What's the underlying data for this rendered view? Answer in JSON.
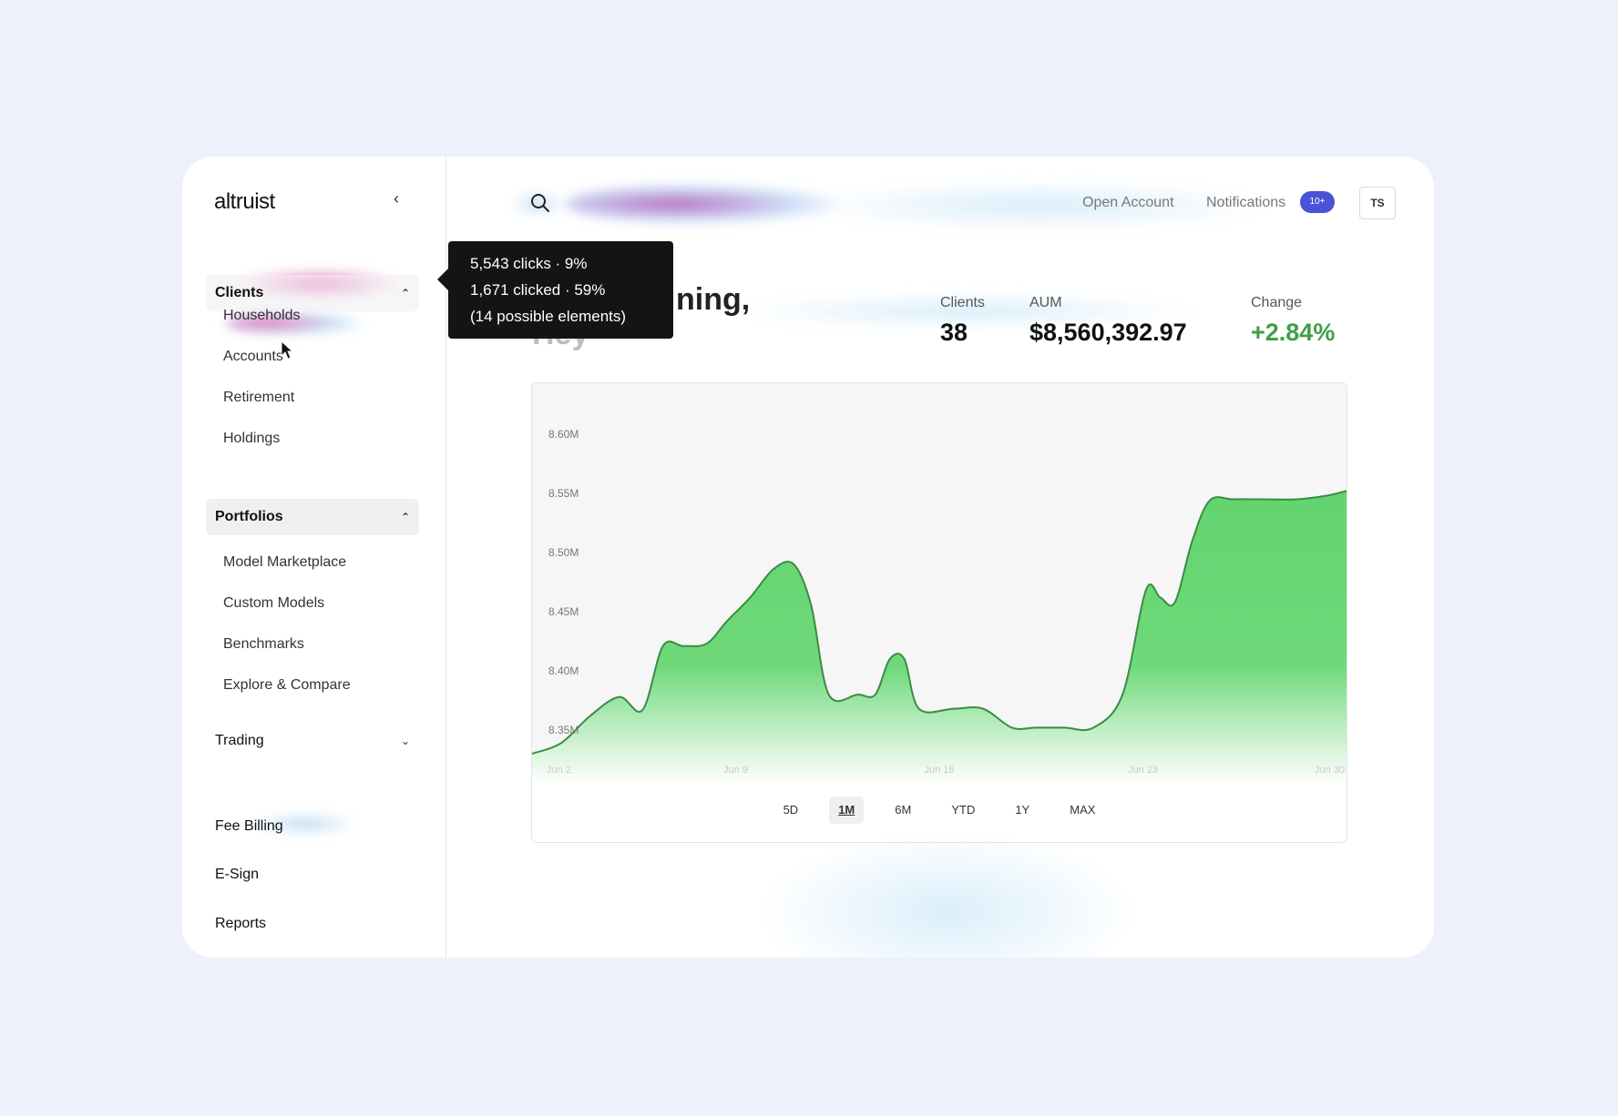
{
  "brand": {
    "logo_text": "altruist"
  },
  "sidebar": {
    "collapse_icon": "chevron-left-icon",
    "groups": [
      {
        "label": "Clients",
        "expanded": true,
        "items": [
          {
            "label": "Households"
          },
          {
            "label": "Accounts"
          },
          {
            "label": "Retirement"
          },
          {
            "label": "Holdings"
          }
        ]
      },
      {
        "label": "Portfolios",
        "expanded": true,
        "items": [
          {
            "label": "Model Marketplace"
          },
          {
            "label": "Custom Models"
          },
          {
            "label": "Benchmarks"
          },
          {
            "label": "Explore & Compare"
          }
        ]
      },
      {
        "label": "Trading",
        "expanded": false,
        "items": []
      }
    ],
    "bottom_items": [
      {
        "label": "Fee Billing"
      },
      {
        "label": "E-Sign"
      },
      {
        "label": "Reports"
      }
    ]
  },
  "tooltip": {
    "line1": "5,543 clicks · 9%",
    "line2": "1,671 clicked · 59%",
    "line3": "(14 possible elements)"
  },
  "header": {
    "search_icon": "search-icon",
    "open_account": "Open Account",
    "notifications": "Notifications",
    "notifications_badge": "10+",
    "avatar_initials": "TS"
  },
  "greeting": {
    "line1": "ning,",
    "line2": "Hey"
  },
  "stats": [
    {
      "label": "Clients",
      "value": "38"
    },
    {
      "label": "AUM",
      "value": "$8,560,392.97"
    },
    {
      "label": "Change",
      "value": "+2.84%"
    }
  ],
  "colors": {
    "accent_green": "#3f9f4b",
    "area_fill": "#63d46f",
    "badge": "#4a52d6"
  },
  "chart_data": {
    "type": "area",
    "title": "",
    "xlabel": "",
    "ylabel": "",
    "y_tick_labels": [
      "8.60M",
      "8.55M",
      "8.50M",
      "8.45M",
      "8.40M",
      "8.35M"
    ],
    "y_ticks": [
      8.6,
      8.55,
      8.5,
      8.45,
      8.4,
      8.35
    ],
    "ylim": [
      8.32,
      8.62
    ],
    "x_tick_labels": [
      "Jun 2",
      "Jun 9",
      "Jun 16",
      "Jun 23",
      "Jun 30"
    ],
    "x_ticks": [
      2,
      9,
      16,
      23,
      30
    ],
    "xlim": [
      2,
      30
    ],
    "x": [
      2,
      3,
      4,
      5,
      5.8,
      6.5,
      7.2,
      8,
      8.7,
      9.5,
      10.3,
      11,
      11.6,
      12.2,
      13.2,
      13.8,
      14.3,
      14.8,
      15.3,
      16.5,
      17.5,
      18.5,
      19.3,
      20.3,
      21.3,
      22.3,
      23.1,
      23.6,
      24.1,
      24.7,
      25.3,
      26.1,
      27.1,
      28.3,
      29.3,
      30
    ],
    "values": [
      8.33,
      8.339,
      8.362,
      8.378,
      8.367,
      8.421,
      8.421,
      8.423,
      8.442,
      8.462,
      8.486,
      8.49,
      8.455,
      8.38,
      8.38,
      8.38,
      8.41,
      8.41,
      8.368,
      8.368,
      8.368,
      8.352,
      8.352,
      8.352,
      8.352,
      8.38,
      8.468,
      8.462,
      8.458,
      8.51,
      8.544,
      8.545,
      8.545,
      8.545,
      8.548,
      8.552
    ],
    "grid": false,
    "range_options": [
      "5D",
      "1M",
      "6M",
      "YTD",
      "1Y",
      "MAX"
    ],
    "selected_range": "1M"
  }
}
